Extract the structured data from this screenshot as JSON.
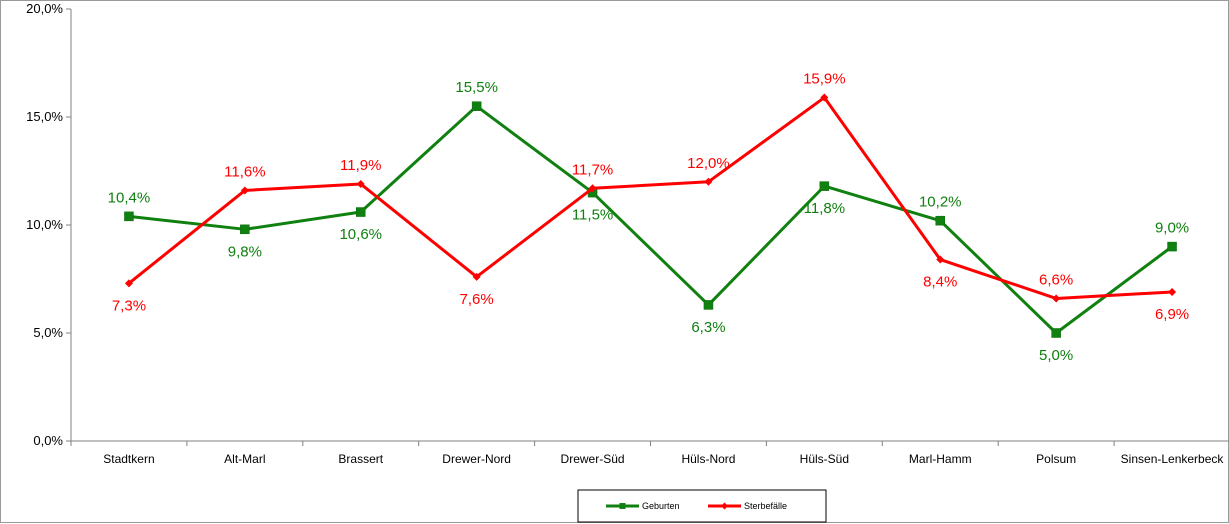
{
  "chart_data": {
    "type": "line",
    "categories": [
      "Stadtkern",
      "Alt-Marl",
      "Brassert",
      "Drewer-Nord",
      "Drewer-Süd",
      "Hüls-Nord",
      "Hüls-Süd",
      "Marl-Hamm",
      "Polsum",
      "Sinsen-Lenkerbeck"
    ],
    "series": [
      {
        "name": "Geburten",
        "color": "#108010",
        "marker": "square",
        "values": [
          10.4,
          9.8,
          10.6,
          15.5,
          11.5,
          6.3,
          11.8,
          10.2,
          5.0,
          9.0
        ],
        "labels": [
          "10,4%",
          "9,8%",
          "10,6%",
          "15,5%",
          "11,5%",
          "6,3%",
          "11,8%",
          "10,2%",
          "5,0%",
          "9,0%"
        ],
        "label_pos": [
          "above",
          "below",
          "below",
          "above",
          "below",
          "below",
          "below",
          "above",
          "below",
          "above"
        ]
      },
      {
        "name": "Sterbefälle",
        "color": "#ff0000",
        "marker": "diamond",
        "values": [
          7.3,
          11.6,
          11.9,
          7.6,
          11.7,
          12.0,
          15.9,
          8.4,
          6.6,
          6.9
        ],
        "labels": [
          "7,3%",
          "11,6%",
          "11,9%",
          "7,6%",
          "11,7%",
          "12,0%",
          "15,9%",
          "8,4%",
          "6,6%",
          "6,9%"
        ],
        "label_pos": [
          "below",
          "above",
          "above",
          "below",
          "above",
          "above",
          "above",
          "below",
          "above",
          "below"
        ]
      }
    ],
    "y_ticks": [
      0,
      5,
      10,
      15,
      20
    ],
    "y_tick_labels": [
      "0,0%",
      "5,0%",
      "10,0%",
      "15,0%",
      "20,0%"
    ],
    "ylim": [
      0,
      20
    ],
    "grid": false,
    "legend": "bottom-center"
  }
}
